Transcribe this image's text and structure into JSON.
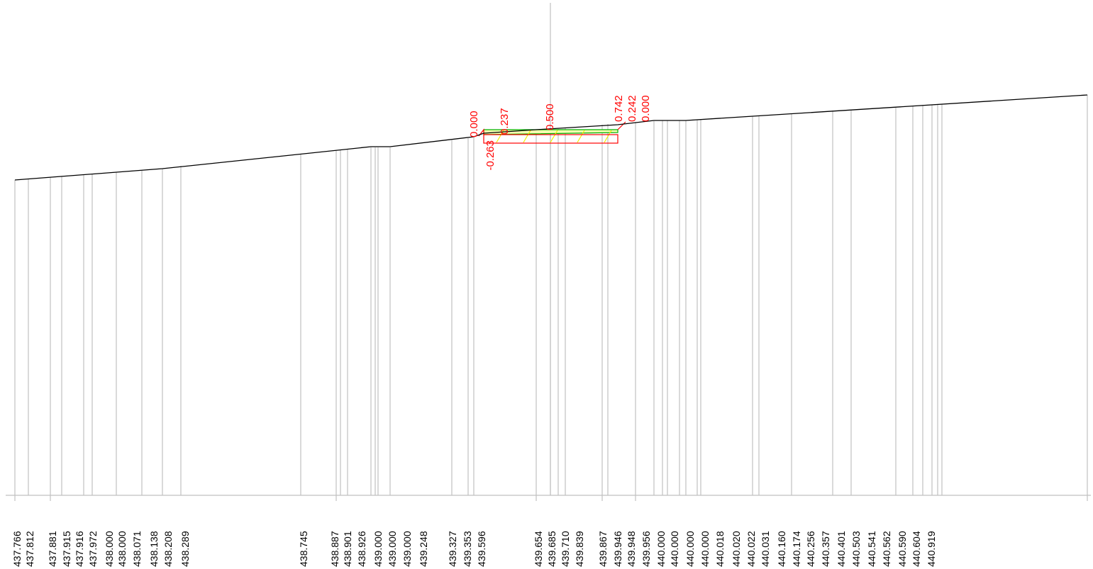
{
  "colors": {
    "background": "#ffffff",
    "station_line": "#c0c0c0",
    "ground_line": "#000000",
    "structure": "#ff0000",
    "layer_outline": "#00b000",
    "layer_fill": "#e8ff60",
    "hatch": "#f0f000",
    "red_label": "#ff0000",
    "elevation_label": "#000000"
  },
  "elevations": [
    {
      "text": "437.766"
    },
    {
      "text": "437.812"
    },
    {
      "text": "437.881"
    },
    {
      "text": "437.915"
    },
    {
      "text": "437.916"
    },
    {
      "text": "437.972"
    },
    {
      "text": "438.000"
    },
    {
      "text": "438.000"
    },
    {
      "text": "438.071"
    },
    {
      "text": "438.138"
    },
    {
      "text": "438.208"
    },
    {
      "text": "438.289"
    },
    {
      "text": "438.745"
    },
    {
      "text": "438.887"
    },
    {
      "text": "438.901"
    },
    {
      "text": "438.926"
    },
    {
      "text": "439.000"
    },
    {
      "text": "439.000"
    },
    {
      "text": "439.000"
    },
    {
      "text": "439.248"
    },
    {
      "text": "439.327"
    },
    {
      "text": "439.353"
    },
    {
      "text": "439.596"
    },
    {
      "text": "439.654"
    },
    {
      "text": "439.685"
    },
    {
      "text": "439.710"
    },
    {
      "text": "439.839"
    },
    {
      "text": "439.867"
    },
    {
      "text": "439.946"
    },
    {
      "text": "439.948"
    },
    {
      "text": "439.956"
    },
    {
      "text": "440.000"
    },
    {
      "text": "440.000"
    },
    {
      "text": "440.000"
    },
    {
      "text": "440.000"
    },
    {
      "text": "440.018"
    },
    {
      "text": "440.020"
    },
    {
      "text": "440.022"
    },
    {
      "text": "440.031"
    },
    {
      "text": "440.160"
    },
    {
      "text": "440.174"
    },
    {
      "text": "440.256"
    },
    {
      "text": "440.357"
    },
    {
      "text": "440.401"
    },
    {
      "text": "440.503"
    },
    {
      "text": "440.541"
    },
    {
      "text": "440.562"
    },
    {
      "text": "440.590"
    },
    {
      "text": "440.604"
    },
    {
      "text": "440.919"
    }
  ],
  "offset_labels": [
    {
      "text": "0.000"
    },
    {
      "text": "0.237"
    },
    {
      "text": "-0.263"
    },
    {
      "text": "0.500"
    },
    {
      "text": "0.742"
    },
    {
      "text": "0.242"
    },
    {
      "text": "0.000"
    }
  ]
}
